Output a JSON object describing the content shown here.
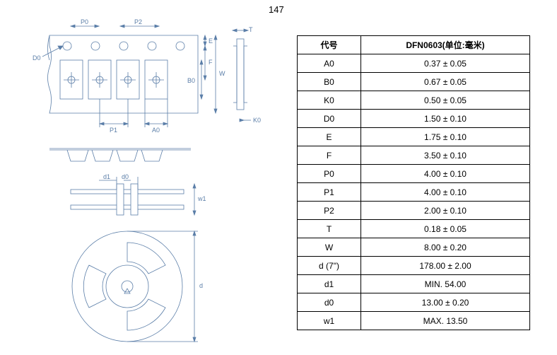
{
  "page_number": "147",
  "diagram": {
    "labels": {
      "P0": "P0",
      "P2": "P2",
      "T": "T",
      "D0": "D0",
      "E": "E",
      "F": "F",
      "W": "W",
      "B0": "B0",
      "P1": "P1",
      "A0": "A0",
      "K0": "K0",
      "d1": "d1",
      "d0": "d0",
      "w1": "w1",
      "d": "d"
    },
    "colors": {
      "line": "#5b7ea8",
      "text": "#5b7ea8",
      "bg": "#ffffff"
    }
  },
  "table": {
    "columns": [
      "代号",
      "DFN0603(单位:毫米)"
    ],
    "rows": [
      [
        "A0",
        "0.37  ±  0.05"
      ],
      [
        "B0",
        "0.67  ±  0.05"
      ],
      [
        "K0",
        "0.50  ±  0.05"
      ],
      [
        "D0",
        "1.50  ±  0.10"
      ],
      [
        "E",
        "1.75  ±  0.10"
      ],
      [
        "F",
        "3.50  ±  0.10"
      ],
      [
        "P0",
        "4.00  ±  0.10"
      ],
      [
        "P1",
        "4.00  ±  0.10"
      ],
      [
        "P2",
        "2.00  ±  0.10"
      ],
      [
        "T",
        "0.18  ±  0.05"
      ],
      [
        "W",
        "8.00  ±  0.20"
      ],
      [
        "d (7\")",
        "178.00  ±  2.00"
      ],
      [
        "d1",
        "MIN. 54.00"
      ],
      [
        "d0",
        "13.00  ±  0.20"
      ],
      [
        "w1",
        "MAX. 13.50"
      ]
    ]
  }
}
